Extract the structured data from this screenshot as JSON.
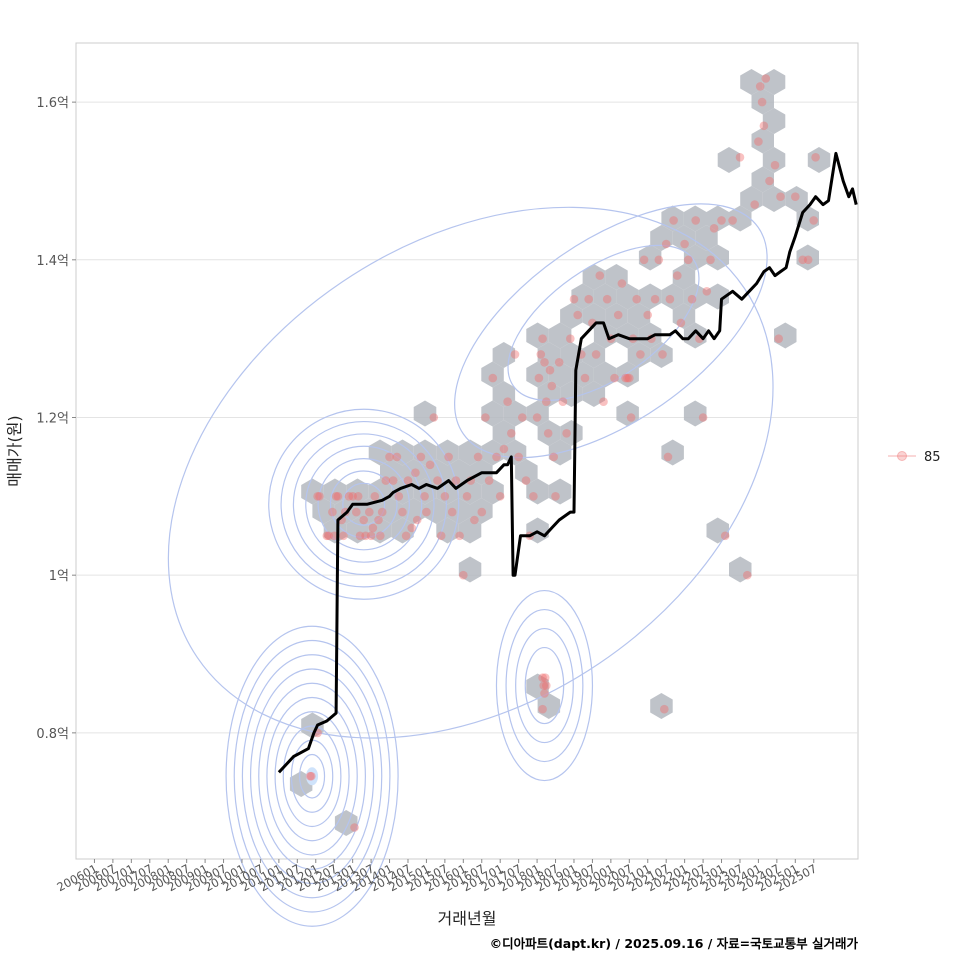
{
  "chart_data": {
    "type": "scatter",
    "title": "",
    "xlabel": "거래년월",
    "ylabel": "매매가(원)",
    "caption": "©디아파트(dapt.kr) / 2025.09.16 / 자료=국토교통부 실거래가",
    "x_range": [
      2005.5,
      2026.7
    ],
    "ylim": [
      0.64,
      1.675
    ],
    "y_ticks": [
      {
        "value": 0.8,
        "label": "0.8억"
      },
      {
        "value": 1.0,
        "label": "1억"
      },
      {
        "value": 1.2,
        "label": "1.2억"
      },
      {
        "value": 1.4,
        "label": "1.4억"
      },
      {
        "value": 1.6,
        "label": "1.6억"
      }
    ],
    "x_ticks": [
      "200601",
      "200607",
      "200701",
      "200707",
      "200801",
      "200807",
      "200901",
      "200907",
      "201001",
      "201007",
      "201101",
      "201107",
      "201201",
      "201207",
      "201301",
      "201307",
      "201401",
      "201407",
      "201501",
      "201507",
      "201601",
      "201607",
      "201701",
      "201707",
      "201801",
      "201807",
      "201901",
      "201907",
      "202001",
      "202007",
      "202101",
      "202107",
      "202201",
      "202207",
      "202301",
      "202307",
      "202401",
      "202407",
      "202501",
      "202507"
    ],
    "legend": [
      {
        "name": "85",
        "color": "#f08080"
      }
    ],
    "colors": {
      "points": "#f06b6b",
      "hex": "#b4b9c0",
      "contour": "#b5c4ee",
      "trend": "#000000",
      "grid": "#e4e4e4",
      "panel_border": "#cccccc"
    },
    "series": [
      {
        "name": "85",
        "points": [
          [
            2011.85,
            0.745
          ],
          [
            2011.88,
            0.745
          ],
          [
            2012.05,
            0.8
          ],
          [
            2013.05,
            0.68
          ],
          [
            2012.05,
            1.1
          ],
          [
            2012.1,
            1.1
          ],
          [
            2012.3,
            1.05
          ],
          [
            2012.35,
            1.05
          ],
          [
            2012.45,
            1.08
          ],
          [
            2012.5,
            1.05
          ],
          [
            2012.55,
            1.1
          ],
          [
            2012.6,
            1.1
          ],
          [
            2012.7,
            1.07
          ],
          [
            2012.75,
            1.05
          ],
          [
            2012.8,
            1.08
          ],
          [
            2012.9,
            1.1
          ],
          [
            2013.0,
            1.1
          ],
          [
            2013.1,
            1.08
          ],
          [
            2013.15,
            1.1
          ],
          [
            2013.2,
            1.05
          ],
          [
            2013.3,
            1.07
          ],
          [
            2013.35,
            1.05
          ],
          [
            2013.45,
            1.08
          ],
          [
            2013.5,
            1.05
          ],
          [
            2013.55,
            1.06
          ],
          [
            2013.6,
            1.1
          ],
          [
            2013.7,
            1.07
          ],
          [
            2013.75,
            1.05
          ],
          [
            2013.8,
            1.08
          ],
          [
            2013.9,
            1.12
          ],
          [
            2014.0,
            1.15
          ],
          [
            2014.1,
            1.12
          ],
          [
            2014.2,
            1.15
          ],
          [
            2014.25,
            1.1
          ],
          [
            2014.35,
            1.08
          ],
          [
            2014.45,
            1.05
          ],
          [
            2014.5,
            1.12
          ],
          [
            2014.6,
            1.06
          ],
          [
            2014.7,
            1.13
          ],
          [
            2014.75,
            1.07
          ],
          [
            2014.85,
            1.15
          ],
          [
            2014.95,
            1.1
          ],
          [
            2015.0,
            1.08
          ],
          [
            2015.1,
            1.14
          ],
          [
            2015.2,
            1.2
          ],
          [
            2015.3,
            1.12
          ],
          [
            2015.4,
            1.05
          ],
          [
            2015.5,
            1.1
          ],
          [
            2015.6,
            1.15
          ],
          [
            2015.7,
            1.08
          ],
          [
            2015.8,
            1.12
          ],
          [
            2015.9,
            1.05
          ],
          [
            2016.0,
            1.0
          ],
          [
            2016.1,
            1.1
          ],
          [
            2016.2,
            1.12
          ],
          [
            2016.3,
            1.07
          ],
          [
            2016.4,
            1.15
          ],
          [
            2016.5,
            1.08
          ],
          [
            2016.6,
            1.2
          ],
          [
            2016.7,
            1.12
          ],
          [
            2016.8,
            1.25
          ],
          [
            2016.9,
            1.15
          ],
          [
            2017.0,
            1.1
          ],
          [
            2017.1,
            1.16
          ],
          [
            2017.2,
            1.22
          ],
          [
            2017.3,
            1.18
          ],
          [
            2017.4,
            1.28
          ],
          [
            2017.5,
            1.15
          ],
          [
            2017.6,
            1.2
          ],
          [
            2017.7,
            1.12
          ],
          [
            2017.8,
            1.05
          ],
          [
            2017.9,
            1.1
          ],
          [
            2018.0,
            1.2
          ],
          [
            2018.05,
            1.25
          ],
          [
            2018.1,
            1.28
          ],
          [
            2018.15,
            1.3
          ],
          [
            2018.2,
            1.27
          ],
          [
            2018.25,
            1.22
          ],
          [
            2018.3,
            1.18
          ],
          [
            2018.35,
            1.26
          ],
          [
            2018.4,
            1.24
          ],
          [
            2018.45,
            1.15
          ],
          [
            2018.5,
            1.1
          ],
          [
            2018.6,
            1.27
          ],
          [
            2018.7,
            1.22
          ],
          [
            2018.8,
            1.18
          ],
          [
            2018.9,
            1.3
          ],
          [
            2019.0,
            1.35
          ],
          [
            2019.1,
            1.33
          ],
          [
            2019.2,
            1.28
          ],
          [
            2019.3,
            1.25
          ],
          [
            2019.4,
            1.35
          ],
          [
            2019.5,
            1.32
          ],
          [
            2019.6,
            1.28
          ],
          [
            2019.7,
            1.38
          ],
          [
            2019.8,
            1.22
          ],
          [
            2019.9,
            1.35
          ],
          [
            2020.0,
            1.3
          ],
          [
            2020.1,
            1.25
          ],
          [
            2020.2,
            1.33
          ],
          [
            2020.3,
            1.37
          ],
          [
            2020.4,
            1.25
          ],
          [
            2020.45,
            1.25
          ],
          [
            2020.5,
            1.25
          ],
          [
            2020.55,
            1.2
          ],
          [
            2020.6,
            1.3
          ],
          [
            2020.7,
            1.35
          ],
          [
            2020.8,
            1.28
          ],
          [
            2020.9,
            1.4
          ],
          [
            2021.0,
            1.33
          ],
          [
            2021.1,
            1.3
          ],
          [
            2021.2,
            1.35
          ],
          [
            2021.3,
            1.4
          ],
          [
            2021.4,
            1.28
          ],
          [
            2021.5,
            1.42
          ],
          [
            2021.6,
            1.35
          ],
          [
            2021.7,
            1.45
          ],
          [
            2021.8,
            1.38
          ],
          [
            2021.9,
            1.32
          ],
          [
            2022.0,
            1.42
          ],
          [
            2022.1,
            1.4
          ],
          [
            2022.2,
            1.35
          ],
          [
            2022.3,
            1.45
          ],
          [
            2022.4,
            1.3
          ],
          [
            2022.5,
            1.2
          ],
          [
            2022.6,
            1.36
          ],
          [
            2022.7,
            1.4
          ],
          [
            2022.8,
            1.44
          ],
          [
            2023.0,
            1.45
          ],
          [
            2023.1,
            1.05
          ],
          [
            2023.3,
            1.45
          ],
          [
            2023.5,
            1.53
          ],
          [
            2023.7,
            1.0
          ],
          [
            2023.9,
            1.47
          ],
          [
            2024.0,
            1.55
          ],
          [
            2024.05,
            1.62
          ],
          [
            2024.1,
            1.6
          ],
          [
            2024.15,
            1.57
          ],
          [
            2024.2,
            1.63
          ],
          [
            2024.3,
            1.5
          ],
          [
            2024.45,
            1.52
          ],
          [
            2024.55,
            1.3
          ],
          [
            2024.6,
            1.48
          ],
          [
            2025.0,
            1.48
          ],
          [
            2025.2,
            1.4
          ],
          [
            2025.35,
            1.4
          ],
          [
            2025.5,
            1.45
          ],
          [
            2025.55,
            1.53
          ],
          [
            2018.15,
            0.87
          ],
          [
            2018.18,
            0.86
          ],
          [
            2018.2,
            0.85
          ],
          [
            2018.22,
            0.87
          ],
          [
            2018.25,
            0.86
          ],
          [
            2018.15,
            0.83
          ],
          [
            2021.45,
            0.83
          ],
          [
            2021.55,
            1.15
          ]
        ]
      },
      {
        "name": "monthly_median_trend",
        "points": [
          [
            2011.0,
            0.75
          ],
          [
            2011.2,
            0.76
          ],
          [
            2011.4,
            0.77
          ],
          [
            2011.6,
            0.775
          ],
          [
            2011.8,
            0.78
          ],
          [
            2011.95,
            0.8
          ],
          [
            2012.05,
            0.81
          ],
          [
            2012.3,
            0.815
          ],
          [
            2012.55,
            0.825
          ],
          [
            2012.6,
            1.07
          ],
          [
            2012.85,
            1.08
          ],
          [
            2013.0,
            1.09
          ],
          [
            2013.4,
            1.09
          ],
          [
            2013.8,
            1.095
          ],
          [
            2014.0,
            1.1
          ],
          [
            2014.1,
            1.105
          ],
          [
            2014.3,
            1.11
          ],
          [
            2014.6,
            1.115
          ],
          [
            2014.8,
            1.11
          ],
          [
            2015.0,
            1.115
          ],
          [
            2015.3,
            1.11
          ],
          [
            2015.6,
            1.12
          ],
          [
            2015.8,
            1.11
          ],
          [
            2016.1,
            1.12
          ],
          [
            2016.5,
            1.13
          ],
          [
            2016.9,
            1.13
          ],
          [
            2017.1,
            1.14
          ],
          [
            2017.2,
            1.14
          ],
          [
            2017.3,
            1.15
          ],
          [
            2017.35,
            1.0
          ],
          [
            2017.4,
            1.0
          ],
          [
            2017.55,
            1.05
          ],
          [
            2017.8,
            1.05
          ],
          [
            2018.0,
            1.055
          ],
          [
            2018.2,
            1.05
          ],
          [
            2018.4,
            1.06
          ],
          [
            2018.6,
            1.07
          ],
          [
            2018.9,
            1.08
          ],
          [
            2019.0,
            1.08
          ],
          [
            2019.05,
            1.26
          ],
          [
            2019.2,
            1.3
          ],
          [
            2019.4,
            1.31
          ],
          [
            2019.6,
            1.32
          ],
          [
            2019.8,
            1.32
          ],
          [
            2019.95,
            1.3
          ],
          [
            2020.2,
            1.305
          ],
          [
            2020.5,
            1.3
          ],
          [
            2020.8,
            1.3
          ],
          [
            2021.0,
            1.3
          ],
          [
            2021.2,
            1.305
          ],
          [
            2021.4,
            1.305
          ],
          [
            2021.6,
            1.305
          ],
          [
            2021.75,
            1.31
          ],
          [
            2021.95,
            1.3
          ],
          [
            2022.1,
            1.3
          ],
          [
            2022.3,
            1.31
          ],
          [
            2022.5,
            1.3
          ],
          [
            2022.65,
            1.31
          ],
          [
            2022.8,
            1.3
          ],
          [
            2022.95,
            1.31
          ],
          [
            2023.0,
            1.35
          ],
          [
            2023.3,
            1.36
          ],
          [
            2023.55,
            1.35
          ],
          [
            2023.75,
            1.36
          ],
          [
            2023.95,
            1.37
          ],
          [
            2024.15,
            1.385
          ],
          [
            2024.3,
            1.39
          ],
          [
            2024.45,
            1.38
          ],
          [
            2024.6,
            1.385
          ],
          [
            2024.75,
            1.39
          ],
          [
            2024.85,
            1.41
          ],
          [
            2025.0,
            1.43
          ],
          [
            2025.2,
            1.46
          ],
          [
            2025.4,
            1.47
          ],
          [
            2025.55,
            1.48
          ],
          [
            2025.75,
            1.47
          ],
          [
            2025.9,
            1.475
          ],
          [
            2026.1,
            1.535
          ],
          [
            2026.3,
            1.5
          ],
          [
            2026.45,
            1.48
          ],
          [
            2026.55,
            1.49
          ],
          [
            2026.65,
            1.47
          ]
        ]
      }
    ]
  }
}
